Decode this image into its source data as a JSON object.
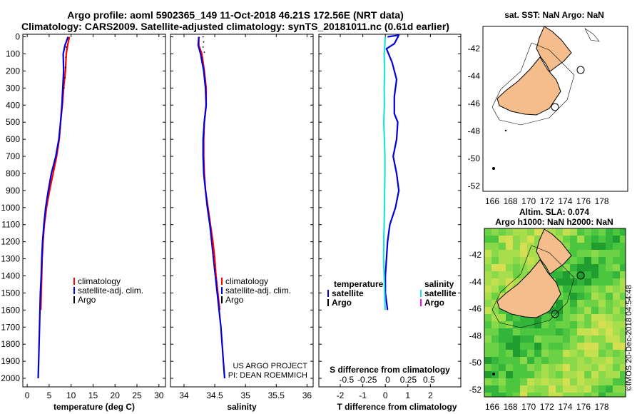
{
  "header": {
    "title_line1": "Argo profile: aoml 5902365_149 11-Oct-2018 46.21S 172.56E (NRT data)",
    "title_line2": "Climatology: CARS2009. Satellite-adjusted climatology: synTS_20181011.nc (0.61d earlier)"
  },
  "colors": {
    "climatology": "#ff0000",
    "satellite": "#0000dd",
    "argo": "#000000",
    "salinity_sat": "#22e0e0",
    "salinity_argo": "#ff00ff",
    "land": "#f5bd8c"
  },
  "chart_data": [
    {
      "type": "line",
      "id": "temperature",
      "xlabel": "temperature (deg C)",
      "ylabel": "",
      "xlim": [
        -1,
        31.5
      ],
      "ylim": [
        2050,
        -15
      ],
      "x_ticks": [
        0,
        5,
        10,
        15,
        20,
        25,
        30
      ],
      "x_tick_labels": [
        "0",
        "5",
        "10",
        "15",
        "20",
        "25",
        "30"
      ],
      "y_ticks": [
        0,
        100,
        200,
        300,
        400,
        500,
        600,
        700,
        800,
        900,
        1000,
        1100,
        1200,
        1300,
        1400,
        1500,
        1600,
        1700,
        1800,
        1900,
        2000
      ],
      "y_tick_labels": [
        "0",
        "100",
        "200",
        "300",
        "400",
        "500",
        "600",
        "700",
        "800",
        "900",
        "1000",
        "1100",
        "1200",
        "1300",
        "1400",
        "1500",
        "1600",
        "1700",
        "1800",
        "1900",
        "2000"
      ],
      "legend": [
        "climatology",
        "satellite-adj. clim.",
        "Argo"
      ],
      "series": [
        {
          "name": "climatology",
          "color": "#ff0000",
          "values": [
            [
              9.6,
              0
            ],
            [
              9.2,
              50
            ],
            [
              8.9,
              100
            ],
            [
              8.7,
              200
            ],
            [
              8.3,
              300
            ],
            [
              8.0,
              400
            ],
            [
              7.6,
              500
            ],
            [
              7.3,
              600
            ],
            [
              6.7,
              700
            ],
            [
              5.9,
              800
            ],
            [
              5.1,
              900
            ],
            [
              4.4,
              1000
            ],
            [
              3.9,
              1100
            ],
            [
              3.6,
              1200
            ],
            [
              3.4,
              1300
            ],
            [
              3.3,
              1400
            ],
            [
              3.2,
              1500
            ],
            [
              3.1,
              1600
            ]
          ]
        },
        {
          "name": "satellite-adj. clim.",
          "color": "#0000dd",
          "values": [
            [
              9.3,
              0
            ],
            [
              8.6,
              50
            ],
            [
              8.2,
              100
            ],
            [
              8.3,
              200
            ],
            [
              8.1,
              300
            ],
            [
              7.9,
              400
            ],
            [
              7.6,
              500
            ],
            [
              7.2,
              600
            ],
            [
              6.5,
              700
            ],
            [
              5.5,
              800
            ],
            [
              4.8,
              900
            ],
            [
              4.2,
              1000
            ],
            [
              3.8,
              1100
            ],
            [
              3.5,
              1200
            ],
            [
              3.3,
              1300
            ],
            [
              3.2,
              1400
            ],
            [
              3.0,
              1500
            ],
            [
              2.9,
              1600
            ],
            [
              2.8,
              1700
            ],
            [
              2.7,
              1800
            ],
            [
              2.6,
              1900
            ],
            [
              2.5,
              2000
            ]
          ]
        },
        {
          "name": "Argo",
          "color": "#000000",
          "values": []
        }
      ]
    },
    {
      "type": "line",
      "id": "salinity",
      "xlabel": "salinity",
      "xlim": [
        33.78,
        36.1
      ],
      "ylim": [
        2050,
        -15
      ],
      "x_ticks": [
        34,
        34.5,
        35,
        35.5,
        36
      ],
      "x_tick_labels": [
        "34",
        "34.5",
        "35",
        "35.5",
        "36"
      ],
      "legend": [
        "climatology",
        "satellite-adj. clim.",
        "Argo"
      ],
      "annotations": [
        "US ARGO PROJECT",
        "PI: DEAN ROEMMICH"
      ],
      "series": [
        {
          "name": "climatology",
          "color": "#ff0000",
          "values": [
            [
              34.24,
              0
            ],
            [
              34.24,
              50
            ],
            [
              34.29,
              100
            ],
            [
              34.33,
              200
            ],
            [
              34.36,
              300
            ],
            [
              34.36,
              400
            ],
            [
              34.33,
              500
            ],
            [
              34.32,
              600
            ],
            [
              34.32,
              700
            ],
            [
              34.33,
              800
            ],
            [
              34.35,
              900
            ],
            [
              34.39,
              1000
            ],
            [
              34.43,
              1100
            ],
            [
              34.47,
              1200
            ],
            [
              34.5,
              1300
            ],
            [
              34.52,
              1400
            ],
            [
              34.55,
              1500
            ],
            [
              34.58,
              1600
            ]
          ]
        },
        {
          "name": "satellite-adj. clim.",
          "color": "#0000dd",
          "values": [
            [
              34.24,
              0
            ],
            [
              34.23,
              50
            ],
            [
              34.27,
              100
            ],
            [
              34.32,
              200
            ],
            [
              34.35,
              300
            ],
            [
              34.36,
              400
            ],
            [
              34.33,
              500
            ],
            [
              34.31,
              600
            ],
            [
              34.31,
              700
            ],
            [
              34.32,
              800
            ],
            [
              34.35,
              900
            ],
            [
              34.38,
              1000
            ],
            [
              34.42,
              1100
            ],
            [
              34.45,
              1200
            ],
            [
              34.48,
              1300
            ],
            [
              34.51,
              1400
            ],
            [
              34.54,
              1500
            ],
            [
              34.57,
              1600
            ],
            [
              34.6,
              1700
            ],
            [
              34.62,
              1800
            ],
            [
              34.64,
              1900
            ],
            [
              34.66,
              2000
            ]
          ]
        },
        {
          "name": "Argo",
          "color": "#000000",
          "values": []
        }
      ]
    },
    {
      "type": "line",
      "id": "difference",
      "xlabel": "T difference from climatology",
      "xlabel_top": "S difference from climatology",
      "xlim": [
        -2.95,
        3.35
      ],
      "ylim": [
        2050,
        -15
      ],
      "x_ticks": [
        -2,
        -1,
        0,
        1,
        2
      ],
      "x_tick_labels": [
        "-2",
        "-1",
        "0",
        "1",
        "2"
      ],
      "s_ticks": [
        -0.5,
        -0.25,
        0,
        0.25,
        0.5
      ],
      "s_tick_labels": [
        "-0.5",
        "-0.25",
        "0",
        "0.25",
        "0.5"
      ],
      "legend_temperature": [
        "temperature",
        "satellite",
        "Argo"
      ],
      "legend_salinity": [
        "salinity",
        "satellite",
        "Argo"
      ],
      "series": [
        {
          "name": "temperature satellite",
          "color": "#0000dd",
          "values": [
            [
              0.1,
              0
            ],
            [
              0.6,
              -10
            ],
            [
              0.4,
              40
            ],
            [
              0.05,
              70
            ],
            [
              0.3,
              150
            ],
            [
              0.5,
              250
            ],
            [
              0.4,
              350
            ],
            [
              0.4,
              450
            ],
            [
              0.55,
              500
            ],
            [
              0.5,
              600
            ],
            [
              0.35,
              700
            ],
            [
              0.5,
              800
            ],
            [
              0.6,
              900
            ],
            [
              0.45,
              1000
            ],
            [
              0.2,
              1100
            ],
            [
              0.1,
              1200
            ],
            [
              0.05,
              1300
            ],
            [
              0.0,
              1400
            ],
            [
              0.0,
              1500
            ],
            [
              0.1,
              1600
            ]
          ]
        },
        {
          "name": "salinity satellite",
          "color": "#22e0e0",
          "values": [
            [
              0.0,
              0
            ],
            [
              -0.05,
              100
            ],
            [
              -0.03,
              200
            ],
            [
              -0.05,
              300
            ],
            [
              -0.04,
              400
            ],
            [
              -0.07,
              500
            ],
            [
              -0.04,
              600
            ],
            [
              -0.02,
              700
            ],
            [
              -0.02,
              800
            ],
            [
              -0.03,
              900
            ],
            [
              -0.04,
              1000
            ],
            [
              -0.05,
              1100
            ],
            [
              -0.07,
              1200
            ],
            [
              -0.08,
              1300
            ],
            [
              -0.05,
              1400
            ],
            [
              -0.03,
              1500
            ],
            [
              -0.01,
              1600
            ]
          ]
        }
      ]
    }
  ],
  "maps": {
    "sst_title": "sat. SST: NaN Argo: NaN",
    "sla_title_line1": "Altim. SLA: 0.074",
    "sla_title_line2": "Argo h1000: NaN h2000: NaN",
    "lon_labels": [
      "166",
      "168",
      "170",
      "172",
      "174",
      "176",
      "178"
    ],
    "lat_labels": [
      "-42",
      "-44",
      "-46",
      "-48",
      "-50",
      "-52"
    ]
  },
  "credit": "©IMOS 20-Dec-2018 04:54:48"
}
